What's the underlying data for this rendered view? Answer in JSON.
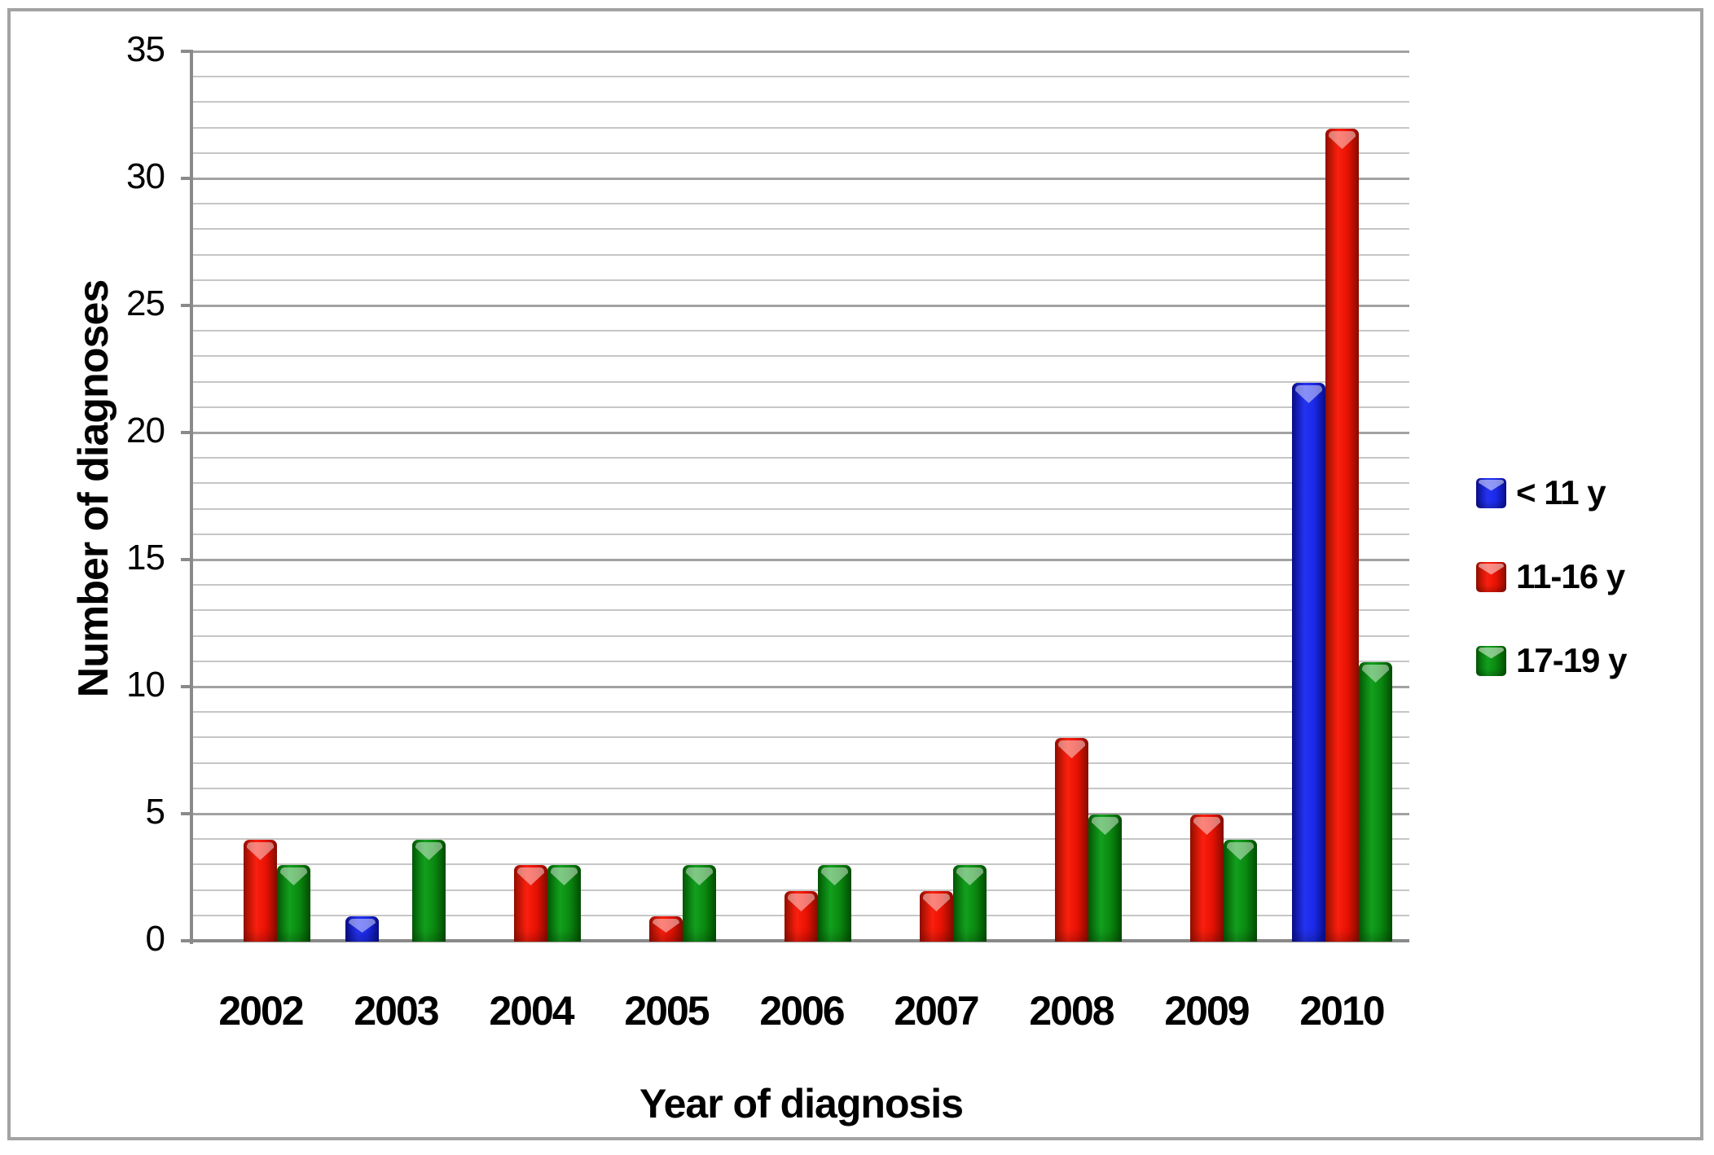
{
  "chart_data": {
    "type": "bar",
    "title": "",
    "xlabel": "Year of diagnosis",
    "ylabel": "Number of diagnoses",
    "categories": [
      "2002",
      "2003",
      "2004",
      "2005",
      "2006",
      "2007",
      "2008",
      "2009",
      "2010"
    ],
    "series": [
      {
        "name": "< 11 y",
        "color": "#1f2eee",
        "gradient": [
          "#0a0f8e",
          "#2433f2",
          "#1b2ae8",
          "#0a0f8e"
        ],
        "values": [
          0,
          1,
          0,
          0,
          0,
          0,
          0,
          0,
          22
        ]
      },
      {
        "name": "11-16 y",
        "color": "#f21505",
        "gradient": [
          "#9c0f00",
          "#fb1f0e",
          "#e81204",
          "#8f0d00"
        ],
        "values": [
          4,
          0,
          3,
          1,
          2,
          2,
          8,
          5,
          32
        ]
      },
      {
        "name": "17-19 y",
        "color": "#0b8a10",
        "gradient": [
          "#045c04",
          "#12a01e",
          "#0b8a10",
          "#035203"
        ],
        "values": [
          3,
          4,
          3,
          3,
          3,
          3,
          5,
          4,
          11
        ]
      }
    ],
    "ylim": [
      0,
      35
    ],
    "ytick_step": 5,
    "yticks": [
      0,
      5,
      10,
      15,
      20,
      25,
      30,
      35
    ],
    "minor_unit": 1,
    "grid": true,
    "legend_position": "right"
  },
  "style_colors": {
    "minor_grid": "#c6c6c6",
    "major_grid": "#a2a2a2",
    "axis": "#8a8a8a",
    "frame_border": "#a3a3a3",
    "text": "#000000",
    "background": "#ffffff"
  }
}
